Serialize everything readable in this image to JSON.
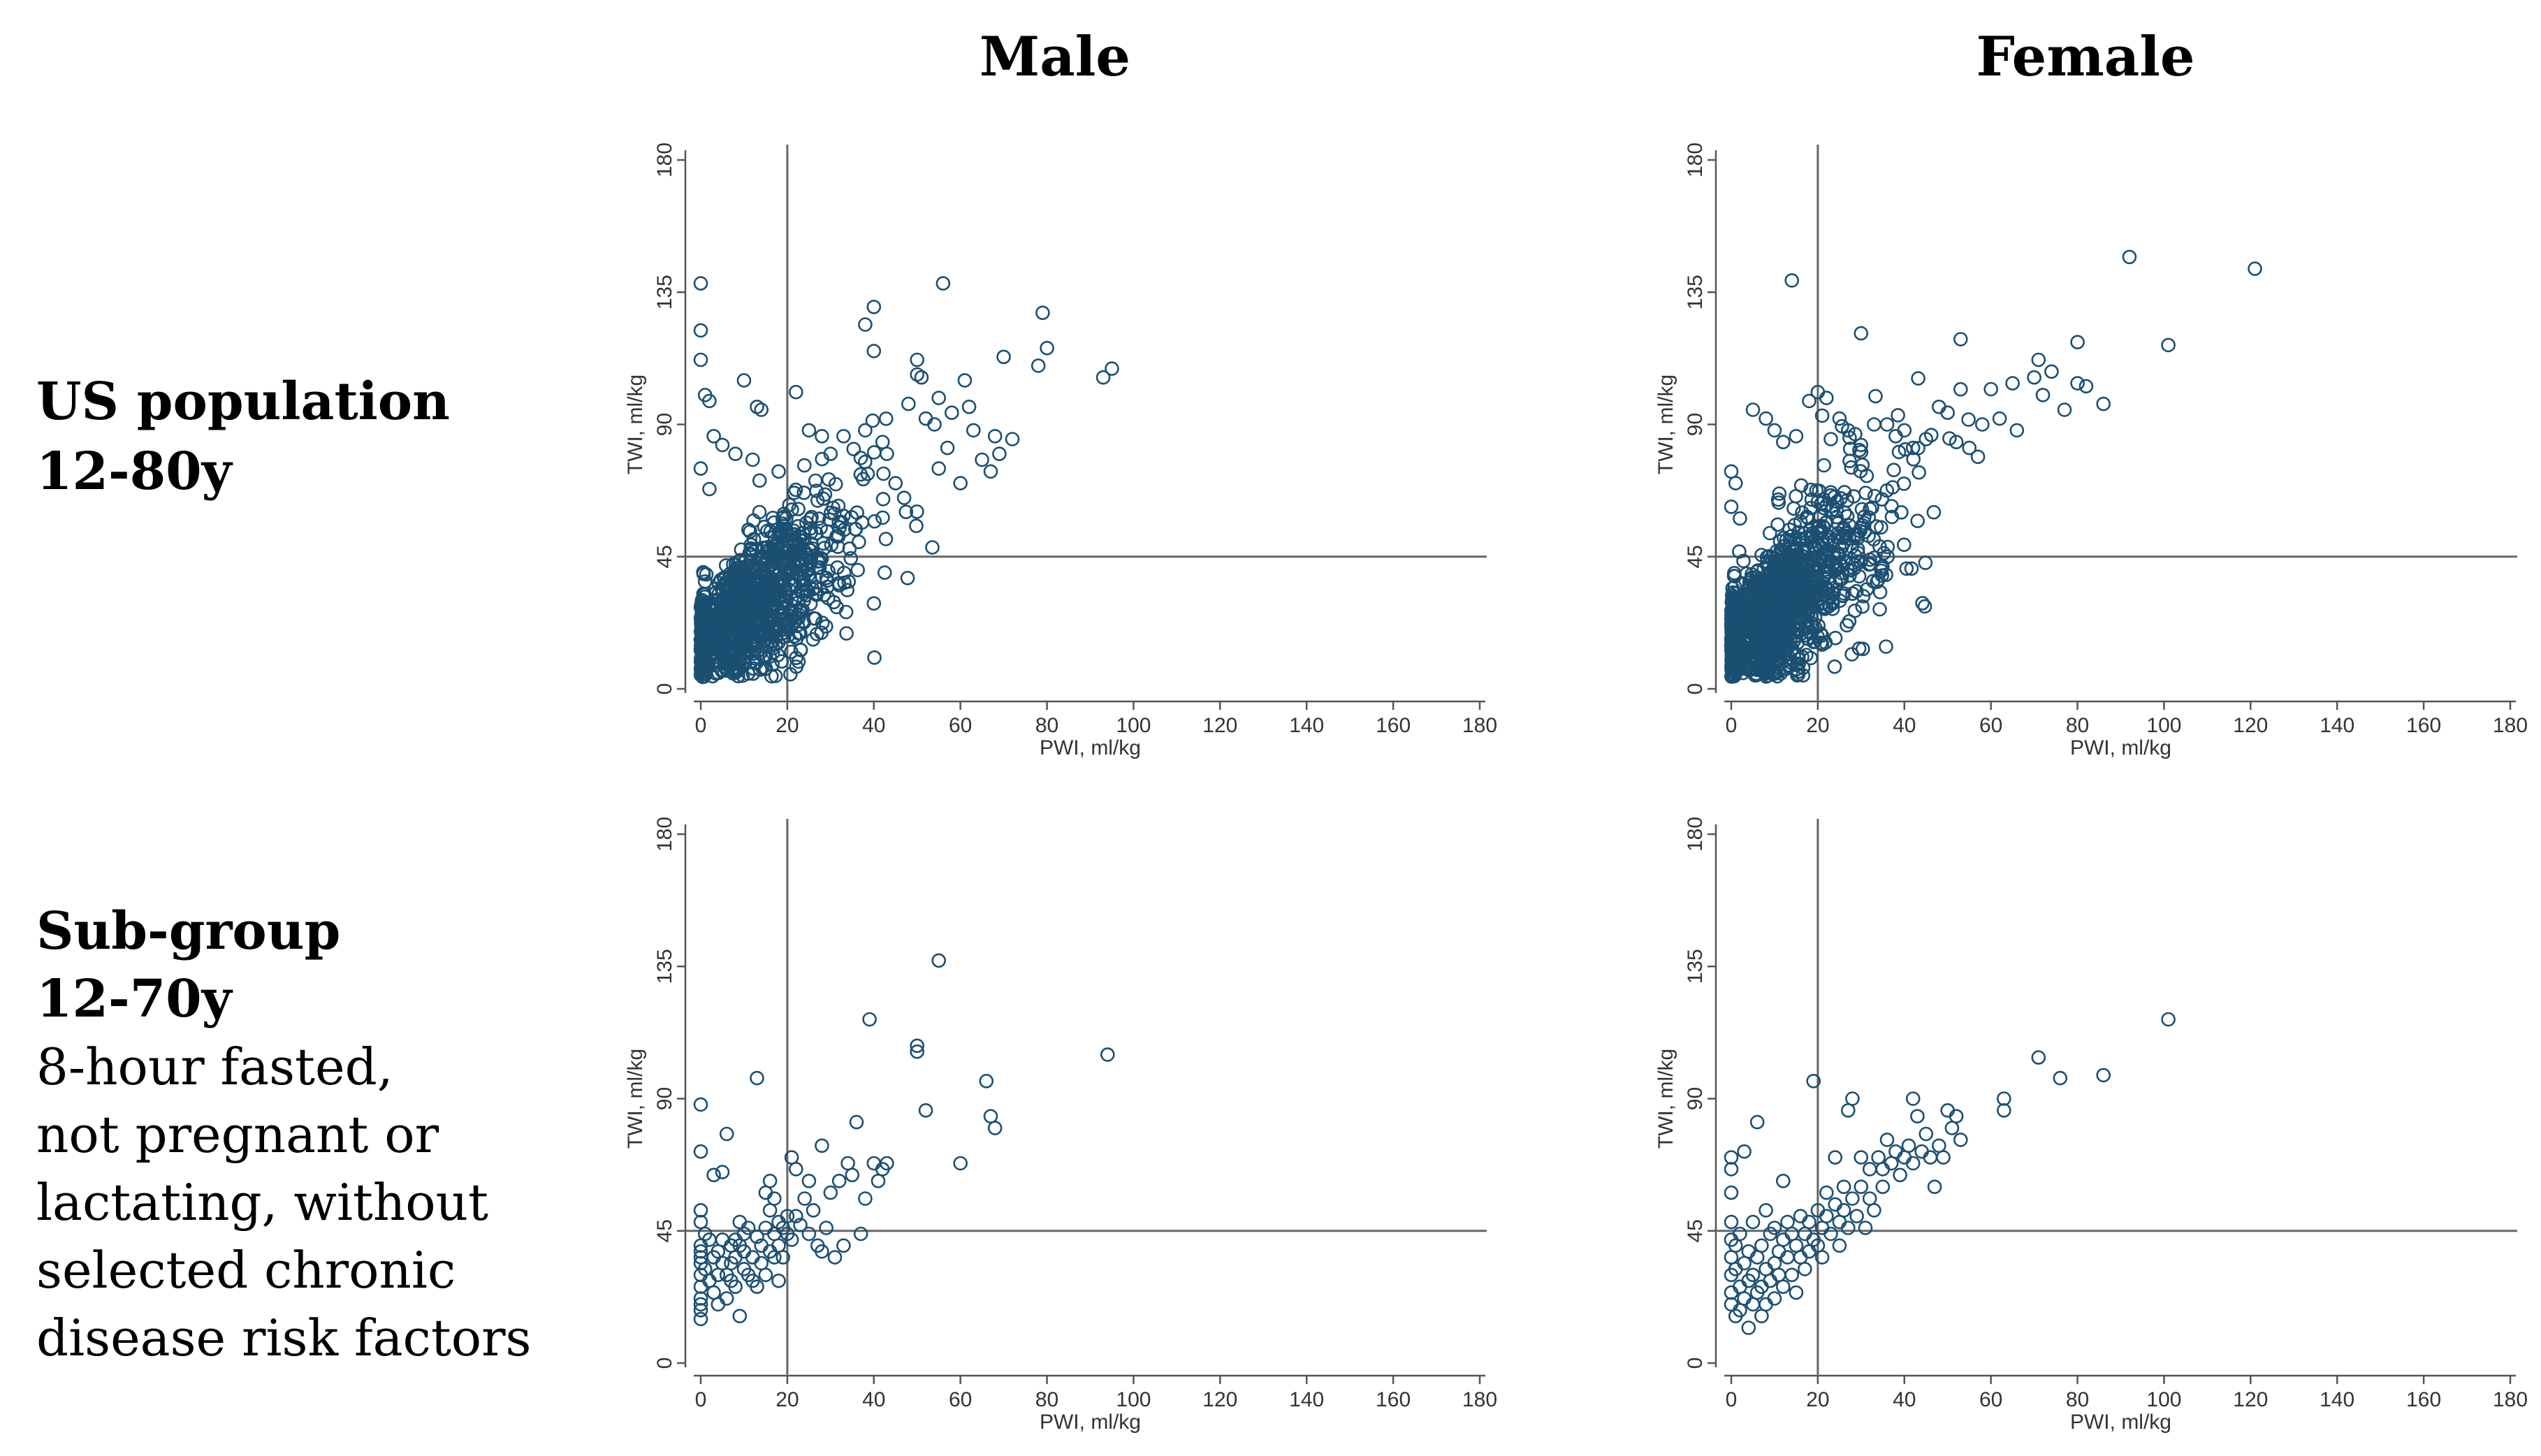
{
  "column_titles": [
    "Male",
    "Female"
  ],
  "row_titles": [
    {
      "lines": [
        "US population",
        "12-80y"
      ]
    },
    {
      "lines": [
        "Sub-group",
        "12-70y"
      ],
      "description": [
        "8-hour fasted,",
        "not pregnant or",
        "lactating, without",
        "selected chronic",
        "disease risk factors"
      ]
    }
  ],
  "colors": {
    "marker": "#1b4f72",
    "axis": "#555555",
    "reference_line": "#666666"
  },
  "chart_data": [
    {
      "type": "scatter",
      "id": "us-male",
      "title": "",
      "xlabel": "PWI, ml/kg",
      "ylabel": "TWI, ml/kg",
      "xlim": [
        0,
        180
      ],
      "ylim": [
        0,
        180
      ],
      "xticks": [
        0,
        20,
        40,
        60,
        80,
        100,
        120,
        140,
        160,
        180
      ],
      "yticks": [
        0,
        45,
        90,
        135,
        180
      ],
      "reference_lines": {
        "x": 20,
        "y": 45
      },
      "seed": 11,
      "n_dense": 1100,
      "slope": 1.05,
      "spread": 0.3,
      "points": [
        [
          0,
          138
        ],
        [
          0,
          122
        ],
        [
          0,
          112
        ],
        [
          1,
          100
        ],
        [
          2,
          98
        ],
        [
          3,
          86
        ],
        [
          0,
          75
        ],
        [
          2,
          68
        ],
        [
          5,
          83
        ],
        [
          10,
          105
        ],
        [
          13,
          96
        ],
        [
          14,
          95
        ],
        [
          8,
          80
        ],
        [
          12,
          78
        ],
        [
          18,
          74
        ],
        [
          22,
          101
        ],
        [
          25,
          88
        ],
        [
          28,
          86
        ],
        [
          30,
          80
        ],
        [
          33,
          86
        ],
        [
          38,
          88
        ],
        [
          38,
          124
        ],
        [
          40,
          130
        ],
        [
          40,
          115
        ],
        [
          42,
          84
        ],
        [
          43,
          80
        ],
        [
          45,
          70
        ],
        [
          47,
          65
        ],
        [
          48,
          97
        ],
        [
          50,
          112
        ],
        [
          50,
          107
        ],
        [
          51,
          106
        ],
        [
          52,
          92
        ],
        [
          54,
          90
        ],
        [
          55,
          99
        ],
        [
          55,
          75
        ],
        [
          56,
          138
        ],
        [
          57,
          82
        ],
        [
          58,
          94
        ],
        [
          60,
          70
        ],
        [
          61,
          105
        ],
        [
          62,
          96
        ],
        [
          63,
          88
        ],
        [
          65,
          78
        ],
        [
          67,
          74
        ],
        [
          68,
          86
        ],
        [
          69,
          80
        ],
        [
          70,
          113
        ],
        [
          72,
          85
        ],
        [
          78,
          110
        ],
        [
          79,
          128
        ],
        [
          80,
          116
        ],
        [
          93,
          106
        ],
        [
          95,
          109
        ]
      ]
    },
    {
      "type": "scatter",
      "id": "us-female",
      "title": "",
      "xlabel": "PWI, ml/kg",
      "ylabel": "TWI, ml/kg",
      "xlim": [
        0,
        180
      ],
      "ylim": [
        0,
        180
      ],
      "xticks": [
        0,
        20,
        40,
        60,
        80,
        100,
        120,
        140,
        160,
        180
      ],
      "yticks": [
        0,
        45,
        90,
        135,
        180
      ],
      "reference_lines": {
        "x": 20,
        "y": 45
      },
      "seed": 23,
      "n_dense": 1300,
      "slope": 1.1,
      "spread": 0.3,
      "points": [
        [
          0,
          74
        ],
        [
          1,
          70
        ],
        [
          0,
          62
        ],
        [
          2,
          58
        ],
        [
          5,
          95
        ],
        [
          8,
          92
        ],
        [
          10,
          88
        ],
        [
          12,
          84
        ],
        [
          14,
          139
        ],
        [
          15,
          86
        ],
        [
          18,
          98
        ],
        [
          20,
          101
        ],
        [
          21,
          93
        ],
        [
          22,
          99
        ],
        [
          23,
          85
        ],
        [
          25,
          92
        ],
        [
          27,
          88
        ],
        [
          30,
          121
        ],
        [
          30,
          83
        ],
        [
          33,
          90
        ],
        [
          36,
          90
        ],
        [
          38,
          86
        ],
        [
          40,
          88
        ],
        [
          42,
          82
        ],
        [
          45,
          85
        ],
        [
          48,
          96
        ],
        [
          50,
          94
        ],
        [
          52,
          84
        ],
        [
          53,
          119
        ],
        [
          55,
          82
        ],
        [
          57,
          79
        ],
        [
          58,
          90
        ],
        [
          60,
          102
        ],
        [
          62,
          92
        ],
        [
          65,
          104
        ],
        [
          66,
          88
        ],
        [
          70,
          106
        ],
        [
          71,
          112
        ],
        [
          72,
          100
        ],
        [
          74,
          108
        ],
        [
          77,
          95
        ],
        [
          80,
          104
        ],
        [
          80,
          118
        ],
        [
          82,
          103
        ],
        [
          86,
          97
        ],
        [
          92,
          147
        ],
        [
          101,
          117
        ],
        [
          121,
          143
        ]
      ]
    },
    {
      "type": "scatter",
      "id": "sub-male",
      "title": "",
      "xlabel": "PWI, ml/kg",
      "ylabel": "TWI, ml/kg",
      "xlim": [
        0,
        180
      ],
      "ylim": [
        0,
        180
      ],
      "xticks": [
        0,
        20,
        40,
        60,
        80,
        100,
        120,
        140,
        160,
        180
      ],
      "yticks": [
        0,
        45,
        90,
        135,
        180
      ],
      "reference_lines": {
        "x": 20,
        "y": 45
      },
      "seed": 37,
      "n_dense": 0,
      "slope": 1.0,
      "spread": 0.3,
      "points": [
        [
          0,
          88
        ],
        [
          0,
          72
        ],
        [
          0,
          52
        ],
        [
          0,
          48
        ],
        [
          0,
          40
        ],
        [
          0,
          38
        ],
        [
          0,
          36
        ],
        [
          0,
          34
        ],
        [
          0,
          30
        ],
        [
          0,
          26
        ],
        [
          0,
          22
        ],
        [
          0,
          20
        ],
        [
          0,
          18
        ],
        [
          0,
          15
        ],
        [
          1,
          44
        ],
        [
          1,
          32
        ],
        [
          2,
          42
        ],
        [
          2,
          28
        ],
        [
          3,
          64
        ],
        [
          3,
          36
        ],
        [
          3,
          24
        ],
        [
          4,
          38
        ],
        [
          4,
          30
        ],
        [
          4,
          20
        ],
        [
          5,
          65
        ],
        [
          5,
          42
        ],
        [
          5,
          34
        ],
        [
          6,
          78
        ],
        [
          6,
          30
        ],
        [
          6,
          22
        ],
        [
          7,
          40
        ],
        [
          7,
          34
        ],
        [
          7,
          28
        ],
        [
          8,
          42
        ],
        [
          8,
          36
        ],
        [
          8,
          26
        ],
        [
          9,
          48
        ],
        [
          9,
          40
        ],
        [
          9,
          16
        ],
        [
          10,
          44
        ],
        [
          10,
          38
        ],
        [
          10,
          32
        ],
        [
          11,
          46
        ],
        [
          11,
          30
        ],
        [
          12,
          36
        ],
        [
          12,
          28
        ],
        [
          13,
          43
        ],
        [
          13,
          26
        ],
        [
          13,
          97
        ],
        [
          14,
          40
        ],
        [
          14,
          34
        ],
        [
          15,
          58
        ],
        [
          15,
          46
        ],
        [
          15,
          30
        ],
        [
          16,
          62
        ],
        [
          16,
          52
        ],
        [
          16,
          38
        ],
        [
          17,
          56
        ],
        [
          17,
          44
        ],
        [
          17,
          36
        ],
        [
          18,
          48
        ],
        [
          18,
          40
        ],
        [
          18,
          28
        ],
        [
          19,
          46
        ],
        [
          19,
          36
        ],
        [
          20,
          44
        ],
        [
          20,
          50
        ],
        [
          21,
          70
        ],
        [
          21,
          42
        ],
        [
          22,
          66
        ],
        [
          22,
          50
        ],
        [
          23,
          47
        ],
        [
          24,
          56
        ],
        [
          25,
          62
        ],
        [
          25,
          44
        ],
        [
          26,
          52
        ],
        [
          27,
          40
        ],
        [
          28,
          74
        ],
        [
          28,
          38
        ],
        [
          29,
          46
        ],
        [
          30,
          58
        ],
        [
          31,
          36
        ],
        [
          32,
          62
        ],
        [
          33,
          40
        ],
        [
          34,
          68
        ],
        [
          35,
          64
        ],
        [
          36,
          82
        ],
        [
          37,
          44
        ],
        [
          38,
          56
        ],
        [
          39,
          117
        ],
        [
          40,
          68
        ],
        [
          41,
          62
        ],
        [
          42,
          66
        ],
        [
          43,
          68
        ],
        [
          50,
          108
        ],
        [
          50,
          106
        ],
        [
          52,
          86
        ],
        [
          55,
          137
        ],
        [
          60,
          68
        ],
        [
          66,
          96
        ],
        [
          67,
          84
        ],
        [
          68,
          80
        ],
        [
          94,
          105
        ]
      ]
    },
    {
      "type": "scatter",
      "id": "sub-female",
      "title": "",
      "xlabel": "PWI, ml/kg",
      "ylabel": "TWI, ml/kg",
      "xlim": [
        0,
        180
      ],
      "ylim": [
        0,
        180
      ],
      "xticks": [
        0,
        20,
        40,
        60,
        80,
        100,
        120,
        140,
        160,
        180
      ],
      "yticks": [
        0,
        45,
        90,
        135,
        180
      ],
      "reference_lines": {
        "x": 20,
        "y": 45
      },
      "seed": 41,
      "n_dense": 0,
      "slope": 1.0,
      "spread": 0.3,
      "points": [
        [
          0,
          70
        ],
        [
          0,
          66
        ],
        [
          0,
          58
        ],
        [
          0,
          48
        ],
        [
          0,
          42
        ],
        [
          0,
          36
        ],
        [
          0,
          30
        ],
        [
          0,
          24
        ],
        [
          0,
          20
        ],
        [
          1,
          40
        ],
        [
          1,
          32
        ],
        [
          1,
          16
        ],
        [
          2,
          44
        ],
        [
          2,
          26
        ],
        [
          2,
          18
        ],
        [
          3,
          72
        ],
        [
          3,
          34
        ],
        [
          3,
          22
        ],
        [
          4,
          38
        ],
        [
          4,
          28
        ],
        [
          4,
          12
        ],
        [
          5,
          48
        ],
        [
          5,
          30
        ],
        [
          5,
          20
        ],
        [
          6,
          82
        ],
        [
          6,
          36
        ],
        [
          6,
          24
        ],
        [
          7,
          40
        ],
        [
          7,
          26
        ],
        [
          7,
          16
        ],
        [
          8,
          52
        ],
        [
          8,
          32
        ],
        [
          8,
          20
        ],
        [
          9,
          44
        ],
        [
          9,
          28
        ],
        [
          10,
          46
        ],
        [
          10,
          34
        ],
        [
          10,
          22
        ],
        [
          11,
          38
        ],
        [
          11,
          30
        ],
        [
          12,
          62
        ],
        [
          12,
          42
        ],
        [
          12,
          26
        ],
        [
          13,
          48
        ],
        [
          13,
          36
        ],
        [
          14,
          44
        ],
        [
          14,
          30
        ],
        [
          15,
          40
        ],
        [
          15,
          24
        ],
        [
          16,
          50
        ],
        [
          16,
          36
        ],
        [
          17,
          44
        ],
        [
          17,
          32
        ],
        [
          18,
          48
        ],
        [
          18,
          38
        ],
        [
          19,
          96
        ],
        [
          19,
          42
        ],
        [
          20,
          52
        ],
        [
          20,
          40
        ],
        [
          21,
          46
        ],
        [
          21,
          36
        ],
        [
          22,
          58
        ],
        [
          22,
          50
        ],
        [
          23,
          44
        ],
        [
          24,
          70
        ],
        [
          24,
          54
        ],
        [
          25,
          48
        ],
        [
          25,
          40
        ],
        [
          26,
          60
        ],
        [
          26,
          52
        ],
        [
          27,
          86
        ],
        [
          27,
          46
        ],
        [
          28,
          90
        ],
        [
          28,
          56
        ],
        [
          29,
          50
        ],
        [
          30,
          70
        ],
        [
          30,
          60
        ],
        [
          31,
          46
        ],
        [
          32,
          66
        ],
        [
          32,
          56
        ],
        [
          33,
          52
        ],
        [
          34,
          70
        ],
        [
          35,
          66
        ],
        [
          35,
          60
        ],
        [
          36,
          76
        ],
        [
          37,
          68
        ],
        [
          38,
          72
        ],
        [
          39,
          64
        ],
        [
          40,
          70
        ],
        [
          41,
          74
        ],
        [
          42,
          90
        ],
        [
          42,
          68
        ],
        [
          43,
          84
        ],
        [
          44,
          72
        ],
        [
          45,
          78
        ],
        [
          46,
          70
        ],
        [
          47,
          60
        ],
        [
          48,
          74
        ],
        [
          49,
          70
        ],
        [
          50,
          86
        ],
        [
          51,
          80
        ],
        [
          52,
          84
        ],
        [
          53,
          76
        ],
        [
          63,
          90
        ],
        [
          63,
          86
        ],
        [
          71,
          104
        ],
        [
          76,
          97
        ],
        [
          86,
          98
        ],
        [
          101,
          117
        ]
      ]
    }
  ]
}
